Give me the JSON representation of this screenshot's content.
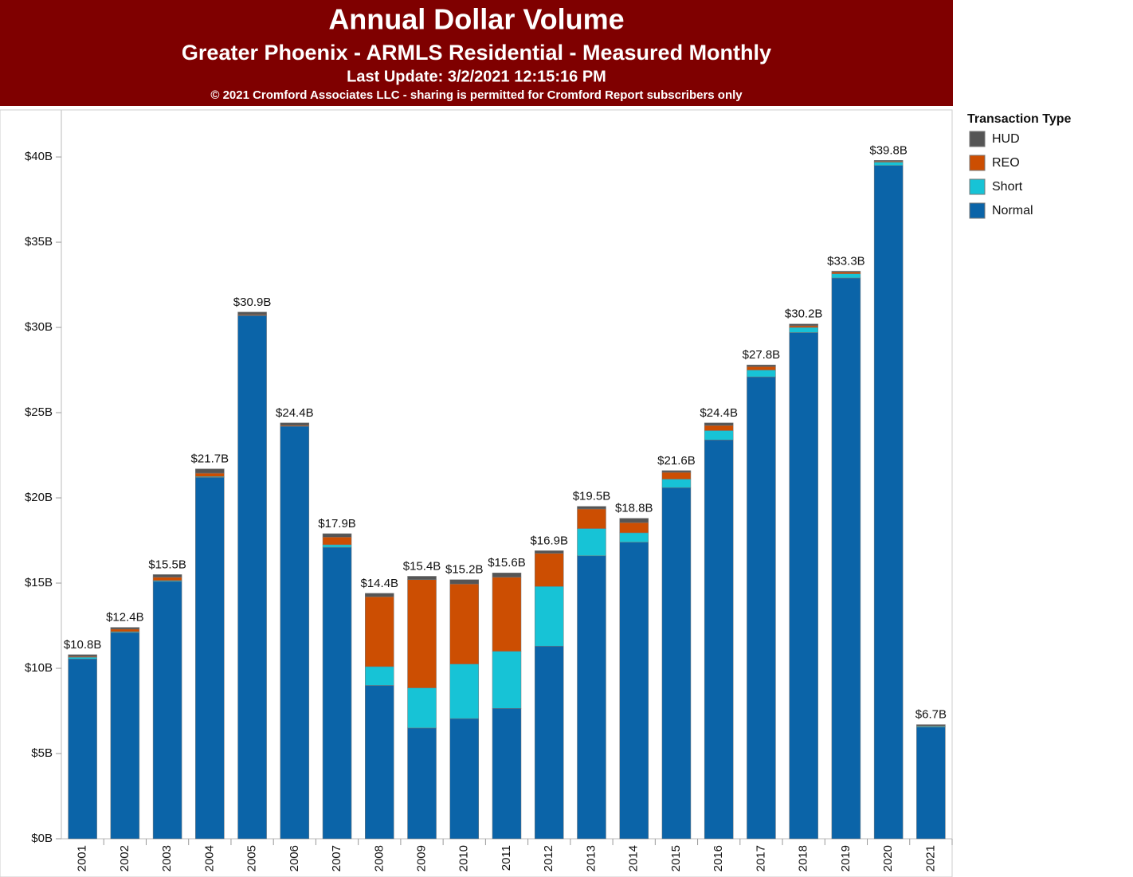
{
  "chart_data": {
    "type": "stacked_bar",
    "title": "Annual Dollar Volume",
    "subtitle": "Greater Phoenix - ARMLS Residential - Measured Monthly",
    "annotations": [
      "Last Update: 3/2/2021 12:15:16 PM",
      "© 2021 Cromford Associates LLC - sharing is permitted for Cromford Report subscribers only"
    ],
    "legend_title": "Transaction Type",
    "legend_position": "right",
    "grid": false,
    "categories": [
      "2001",
      "2002",
      "2003",
      "2004",
      "2005",
      "2006",
      "2007",
      "2008",
      "2009",
      "2010",
      "2011",
      "2012",
      "2013",
      "2014",
      "2015",
      "2016",
      "2017",
      "2018",
      "2019",
      "2020",
      "2021"
    ],
    "series": [
      {
        "name": "Normal",
        "color": "#0b64a8",
        "values": [
          10.55,
          12.1,
          15.1,
          21.2,
          30.7,
          24.2,
          17.1,
          9.0,
          6.5,
          7.05,
          7.65,
          11.3,
          16.6,
          17.4,
          20.6,
          23.4,
          27.1,
          29.7,
          32.9,
          39.5,
          6.55
        ]
      },
      {
        "name": "Short",
        "color": "#17c3d6",
        "values": [
          0.1,
          0.05,
          0.05,
          0.05,
          0,
          0,
          0.15,
          1.1,
          2.35,
          3.2,
          3.35,
          3.5,
          1.6,
          0.55,
          0.5,
          0.55,
          0.4,
          0.3,
          0.25,
          0.2,
          0.05
        ]
      },
      {
        "name": "REO",
        "color": "#cc4e02",
        "values": [
          0.05,
          0.15,
          0.2,
          0.2,
          0.05,
          0.05,
          0.45,
          4.1,
          6.35,
          4.7,
          4.35,
          1.95,
          1.15,
          0.6,
          0.4,
          0.3,
          0.2,
          0.1,
          0.1,
          0.05,
          0.03
        ]
      },
      {
        "name": "HUD",
        "color": "#555555",
        "values": [
          0.1,
          0.1,
          0.15,
          0.25,
          0.15,
          0.15,
          0.2,
          0.2,
          0.2,
          0.25,
          0.25,
          0.15,
          0.15,
          0.25,
          0.1,
          0.15,
          0.1,
          0.1,
          0.05,
          0.05,
          0.07
        ]
      }
    ],
    "totals": {
      "values": [
        10.8,
        12.4,
        15.5,
        21.7,
        30.9,
        24.4,
        17.9,
        14.4,
        15.4,
        15.2,
        15.6,
        16.9,
        19.5,
        18.8,
        21.6,
        24.4,
        27.8,
        30.2,
        33.3,
        39.8,
        6.7
      ],
      "value_labels": [
        "$10.8B",
        "$12.4B",
        "$15.5B",
        "$21.7B",
        "$30.9B",
        "$24.4B",
        "$17.9B",
        "$14.4B",
        "$15.4B",
        "$15.2B",
        "$15.6B",
        "$16.9B",
        "$19.5B",
        "$18.8B",
        "$21.6B",
        "$24.4B",
        "$27.8B",
        "$30.2B",
        "$33.3B",
        "$39.8B",
        "$6.7B"
      ]
    },
    "ylim": [
      0,
      42.76
    ],
    "yticks": [
      {
        "value": 0,
        "label": "$0B"
      },
      {
        "value": 5,
        "label": "$5B"
      },
      {
        "value": 10,
        "label": "$10B"
      },
      {
        "value": 15,
        "label": "$15B"
      },
      {
        "value": 20,
        "label": "$20B"
      },
      {
        "value": 25,
        "label": "$25B"
      },
      {
        "value": 30,
        "label": "$30B"
      },
      {
        "value": 35,
        "label": "$35B"
      },
      {
        "value": 40,
        "label": "$40B"
      }
    ]
  }
}
